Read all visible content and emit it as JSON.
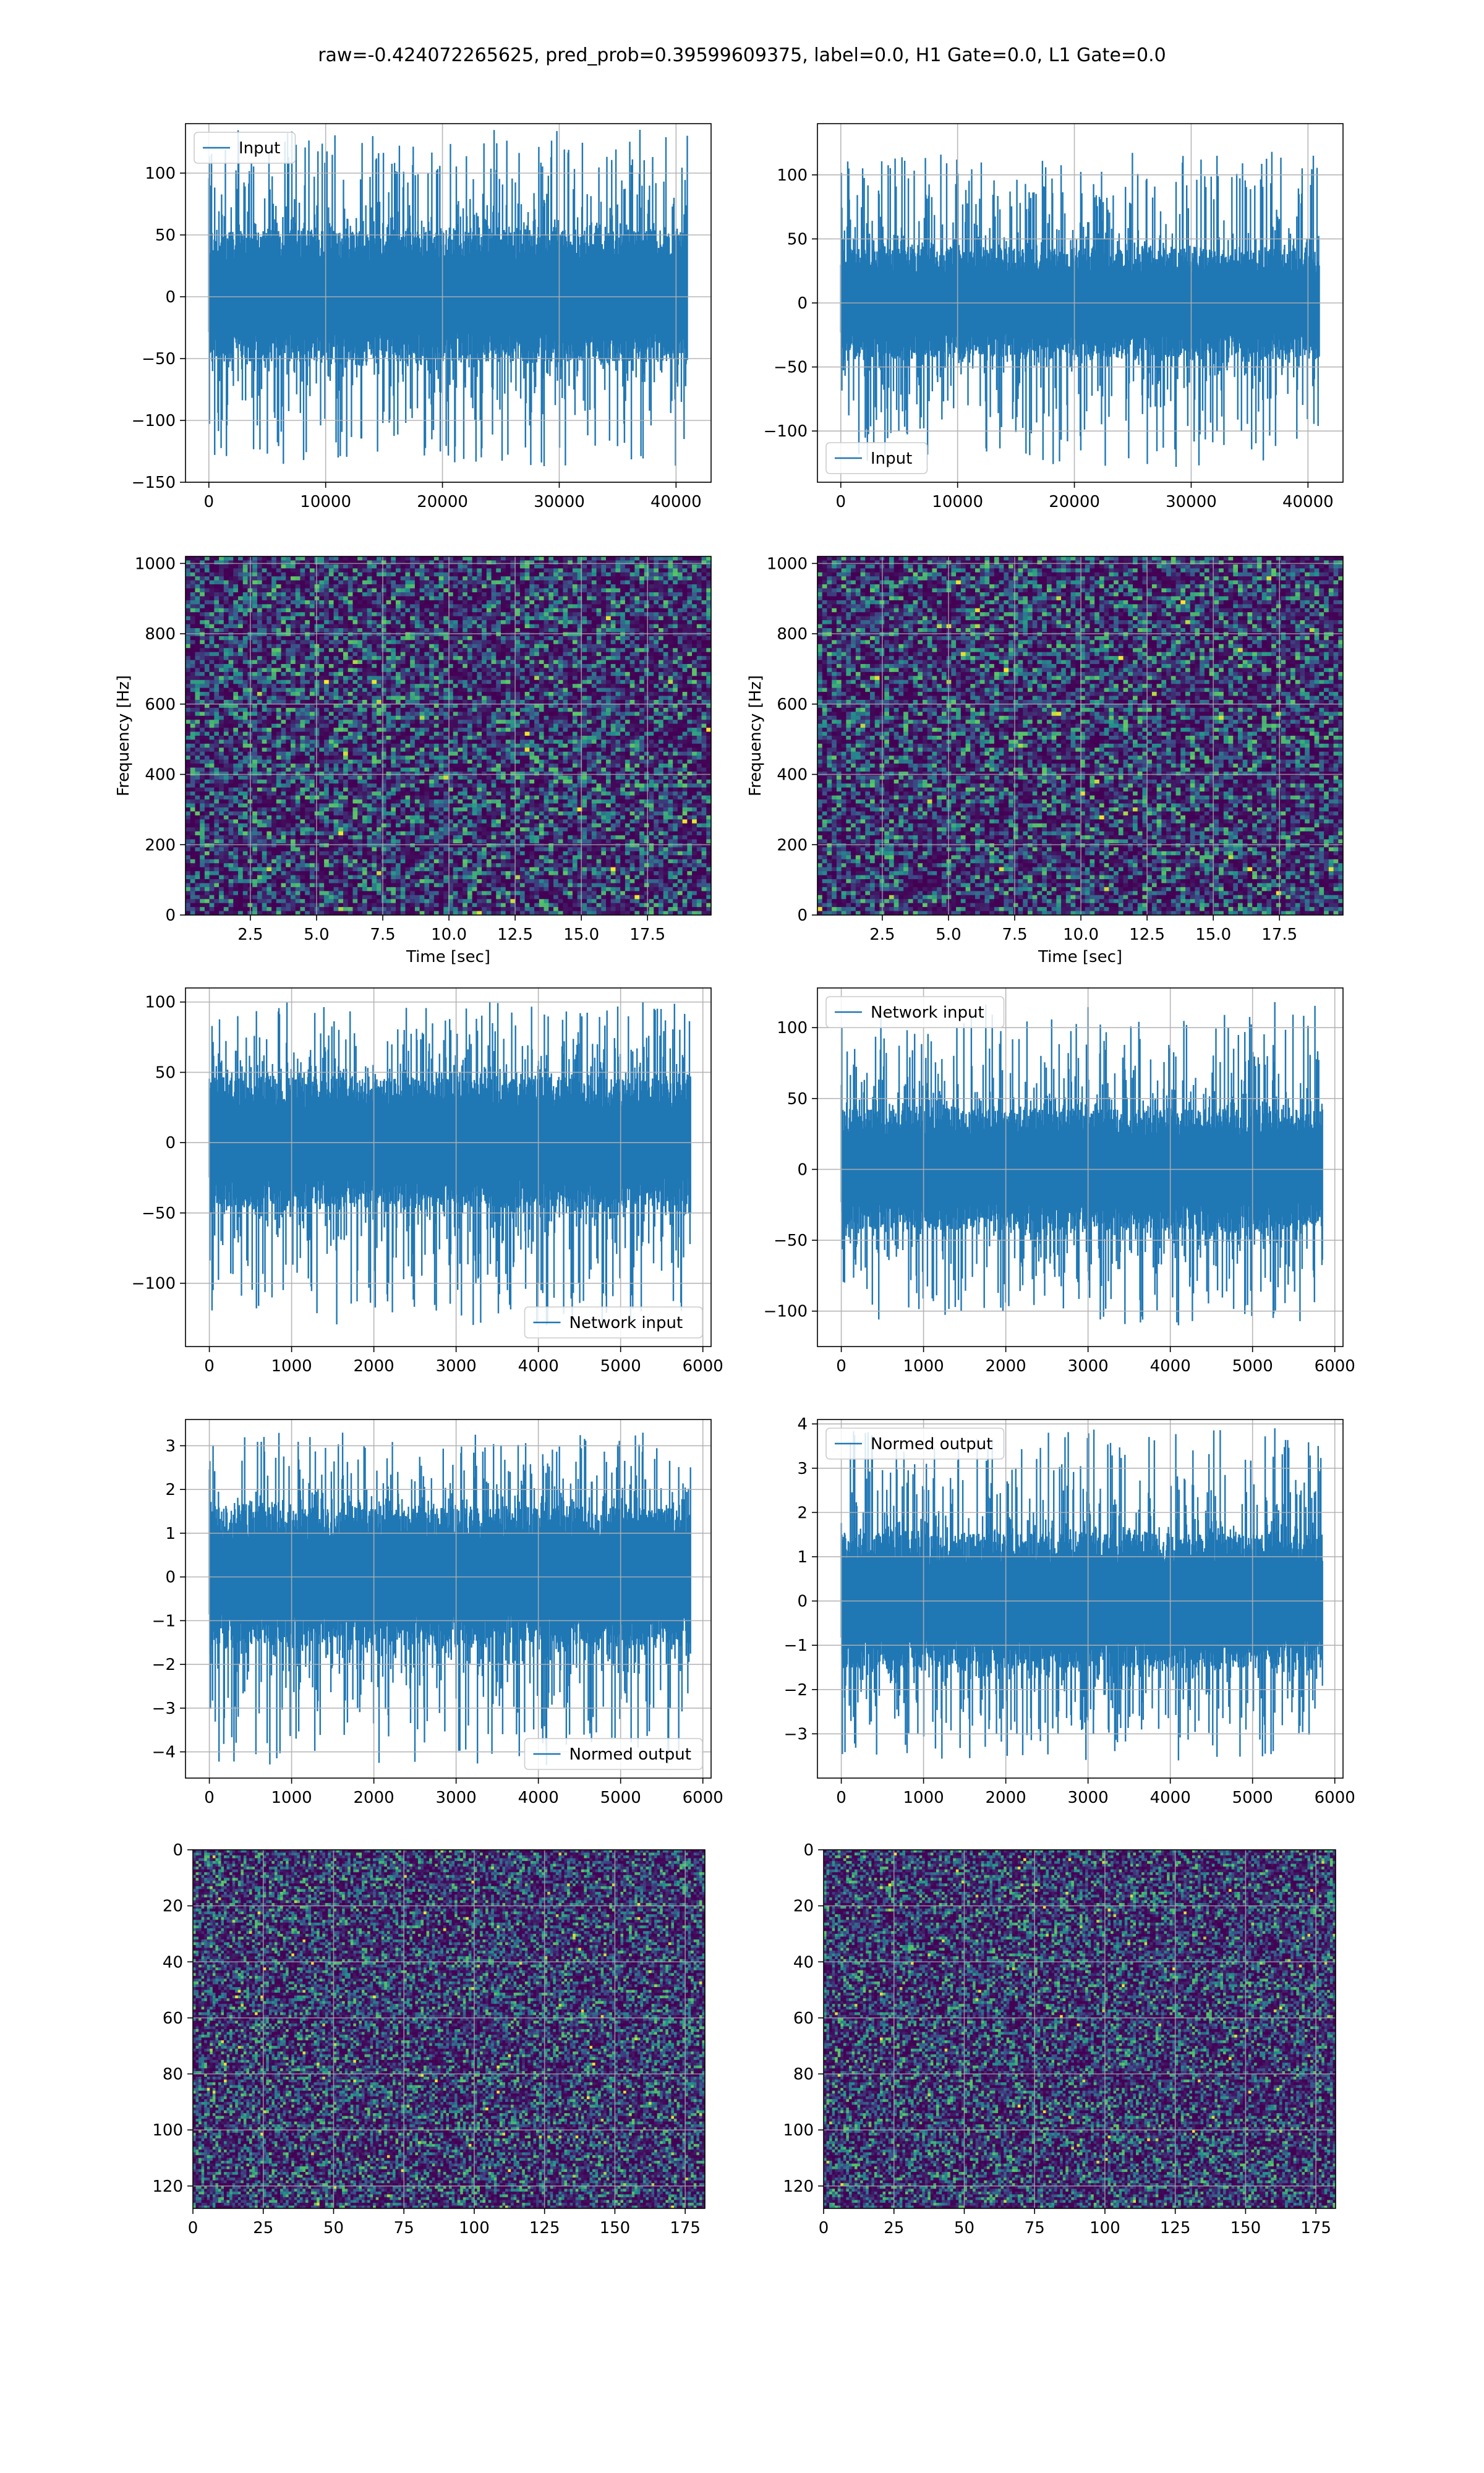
{
  "figure": {
    "suptitle": "raw=-0.424072265625, pred_prob=0.39599609375, label=0.0, H1 Gate=0.0, L1 Gate=0.0",
    "colors": {
      "line": "#1f77b4",
      "grid": "#b0b0b0",
      "axes": "#000000"
    }
  },
  "chart_data": [
    {
      "id": "h1-input",
      "type": "line",
      "series": [
        {
          "name": "Input"
        }
      ],
      "legend": "top-left",
      "grid": true,
      "xlim": [
        -2000,
        43000
      ],
      "ylim": [
        -150,
        140
      ],
      "xticks": [
        0,
        10000,
        20000,
        30000,
        40000
      ],
      "yticks": [
        -150,
        -100,
        -50,
        0,
        50,
        100
      ],
      "xticklabels": [
        "0",
        "10000",
        "20000",
        "30000",
        "40000"
      ],
      "yticklabels": [
        "−150",
        "−100",
        "−50",
        "0",
        "50",
        "100"
      ],
      "signal": {
        "x_range": [
          0,
          40960
        ],
        "band": [
          -52,
          53
        ],
        "spike_min": -137,
        "spike_max": 135,
        "seed": 11
      }
    },
    {
      "id": "l1-input",
      "type": "line",
      "series": [
        {
          "name": "Input"
        }
      ],
      "legend": "bottom-left",
      "grid": true,
      "xlim": [
        -2000,
        43000
      ],
      "ylim": [
        -140,
        140
      ],
      "xticks": [
        0,
        10000,
        20000,
        30000,
        40000
      ],
      "yticks": [
        -100,
        -50,
        0,
        50,
        100
      ],
      "xticklabels": [
        "0",
        "10000",
        "20000",
        "30000",
        "40000"
      ],
      "yticklabels": [
        "−100",
        "−50",
        "0",
        "50",
        "100"
      ],
      "signal": {
        "x_range": [
          0,
          40960
        ],
        "band": [
          -42,
          42
        ],
        "spike_min": -128,
        "spike_max": 118,
        "seed": 23
      }
    },
    {
      "id": "h1-spectrogram",
      "type": "heatmap",
      "grid": true,
      "xlabel": "Time [sec]",
      "ylabel": "Frequency [Hz]",
      "xlim": [
        0.05,
        19.9
      ],
      "ylim": [
        0,
        1020
      ],
      "xticks": [
        2.5,
        5.0,
        7.5,
        10.0,
        12.5,
        15.0,
        17.5
      ],
      "yticks": [
        0,
        200,
        400,
        600,
        800,
        1000
      ],
      "xticklabels": [
        "2.5",
        "5.0",
        "7.5",
        "10.0",
        "12.5",
        "15.0",
        "17.5"
      ],
      "yticklabels": [
        "0",
        "200",
        "400",
        "600",
        "800",
        "1000"
      ],
      "colormap": "viridis",
      "cells": [
        110,
        90
      ],
      "seed": 5
    },
    {
      "id": "l1-spectrogram",
      "type": "heatmap",
      "grid": true,
      "xlabel": "Time [sec]",
      "ylabel": "Frequency [Hz]",
      "xlim": [
        0.05,
        19.9
      ],
      "ylim": [
        0,
        1020
      ],
      "xticks": [
        2.5,
        5.0,
        7.5,
        10.0,
        12.5,
        15.0,
        17.5
      ],
      "yticks": [
        0,
        200,
        400,
        600,
        800,
        1000
      ],
      "xticklabels": [
        "2.5",
        "5.0",
        "7.5",
        "10.0",
        "12.5",
        "15.0",
        "17.5"
      ],
      "yticklabels": [
        "0",
        "200",
        "400",
        "600",
        "800",
        "1000"
      ],
      "colormap": "viridis",
      "cells": [
        110,
        90
      ],
      "seed": 7
    },
    {
      "id": "h1-network-input",
      "type": "line",
      "series": [
        {
          "name": "Network input"
        }
      ],
      "legend": "bottom-right",
      "grid": true,
      "xlim": [
        -290,
        6100
      ],
      "ylim": [
        -145,
        110
      ],
      "xticks": [
        0,
        1000,
        2000,
        3000,
        4000,
        5000,
        6000
      ],
      "yticks": [
        -100,
        -50,
        0,
        50,
        100
      ],
      "xticklabels": [
        "0",
        "1000",
        "2000",
        "3000",
        "4000",
        "5000",
        "6000"
      ],
      "yticklabels": [
        "−100",
        "−50",
        "0",
        "50",
        "100"
      ],
      "signal": {
        "x_range": [
          0,
          5850
        ],
        "band": [
          -45,
          45
        ],
        "spike_min": -130,
        "spike_max": 100,
        "seed": 31
      }
    },
    {
      "id": "l1-network-input",
      "type": "line",
      "series": [
        {
          "name": "Network input"
        }
      ],
      "legend": "top-left",
      "grid": true,
      "xlim": [
        -290,
        6100
      ],
      "ylim": [
        -125,
        128
      ],
      "xticks": [
        0,
        1000,
        2000,
        3000,
        4000,
        5000,
        6000
      ],
      "yticks": [
        -100,
        -50,
        0,
        50,
        100
      ],
      "xticklabels": [
        "0",
        "1000",
        "2000",
        "3000",
        "4000",
        "5000",
        "6000"
      ],
      "yticklabels": [
        "−100",
        "−50",
        "0",
        "50",
        "100"
      ],
      "signal": {
        "x_range": [
          0,
          5850
        ],
        "band": [
          -42,
          42
        ],
        "spike_min": -110,
        "spike_max": 118,
        "seed": 37
      }
    },
    {
      "id": "h1-normed-output",
      "type": "line",
      "series": [
        {
          "name": "Normed output"
        }
      ],
      "legend": "bottom-right",
      "grid": true,
      "xlim": [
        -290,
        6100
      ],
      "ylim": [
        -4.6,
        3.6
      ],
      "xticks": [
        0,
        1000,
        2000,
        3000,
        4000,
        5000,
        6000
      ],
      "yticks": [
        -4,
        -3,
        -2,
        -1,
        0,
        1,
        2,
        3
      ],
      "xticklabels": [
        "0",
        "1000",
        "2000",
        "3000",
        "4000",
        "5000",
        "6000"
      ],
      "yticklabels": [
        "−4",
        "−3",
        "−2",
        "−1",
        "0",
        "1",
        "2",
        "3"
      ],
      "signal": {
        "x_range": [
          0,
          5850
        ],
        "band": [
          -1.55,
          1.55
        ],
        "spike_min": -4.3,
        "spike_max": 3.3,
        "seed": 41
      }
    },
    {
      "id": "l1-normed-output",
      "type": "line",
      "series": [
        {
          "name": "Normed output"
        }
      ],
      "legend": "top-left",
      "grid": true,
      "xlim": [
        -290,
        6100
      ],
      "ylim": [
        -4.0,
        4.1
      ],
      "xticks": [
        0,
        1000,
        2000,
        3000,
        4000,
        5000,
        6000
      ],
      "yticks": [
        -3,
        -2,
        -1,
        0,
        1,
        2,
        3,
        4
      ],
      "xticklabels": [
        "0",
        "1000",
        "2000",
        "3000",
        "4000",
        "5000",
        "6000"
      ],
      "yticklabels": [
        "−3",
        "−2",
        "−1",
        "0",
        "1",
        "2",
        "3",
        "4"
      ],
      "signal": {
        "x_range": [
          0,
          5850
        ],
        "band": [
          -1.5,
          1.5
        ],
        "spike_min": -3.6,
        "spike_max": 3.9,
        "seed": 43
      }
    },
    {
      "id": "h1-image",
      "type": "heatmap",
      "grid": true,
      "xlim": [
        0,
        182
      ],
      "ylim": [
        128,
        0
      ],
      "xticks": [
        0,
        25,
        50,
        75,
        100,
        125,
        150,
        175
      ],
      "yticks": [
        0,
        20,
        40,
        60,
        80,
        100,
        120
      ],
      "xticklabels": [
        "0",
        "25",
        "50",
        "75",
        "100",
        "125",
        "150",
        "175"
      ],
      "yticklabels": [
        "0",
        "20",
        "40",
        "60",
        "80",
        "100",
        "120"
      ],
      "colormap": "viridis",
      "cells": [
        182,
        128
      ],
      "seed": 13
    },
    {
      "id": "l1-image",
      "type": "heatmap",
      "grid": true,
      "xlim": [
        0,
        182
      ],
      "ylim": [
        128,
        0
      ],
      "xticks": [
        0,
        25,
        50,
        75,
        100,
        125,
        150,
        175
      ],
      "yticks": [
        0,
        20,
        40,
        60,
        80,
        100,
        120
      ],
      "xticklabels": [
        "0",
        "25",
        "50",
        "75",
        "100",
        "125",
        "150",
        "175"
      ],
      "yticklabels": [
        "0",
        "20",
        "40",
        "60",
        "80",
        "100",
        "120"
      ],
      "colormap": "viridis",
      "cells": [
        182,
        128
      ],
      "seed": 17
    }
  ]
}
